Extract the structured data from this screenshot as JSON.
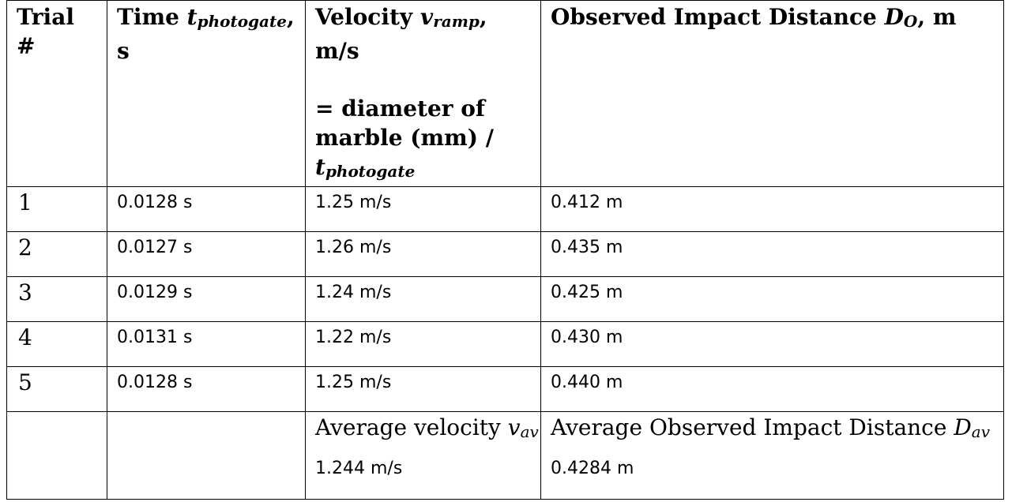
{
  "table": {
    "headers": {
      "trial": "Trial #",
      "time": {
        "prefix": "Time ",
        "var": "t",
        "sub": "photogate",
        "suffix": ", s"
      },
      "velocity": {
        "prefix": "Velocity ",
        "var": "v",
        "sub": "ramp",
        "suffix": ", m/s",
        "formula_line1": "= diameter of",
        "formula_line2": "marble (mm) /",
        "formula_var": "t",
        "formula_sub": "photogate"
      },
      "distance": {
        "prefix": "Observed Impact Distance ",
        "var": "D",
        "sub": "O",
        "suffix": ", m"
      }
    },
    "rows": [
      {
        "trial": "1",
        "time": "0.0128 s",
        "velocity": "1.25 m/s",
        "distance": "0.412 m"
      },
      {
        "trial": "2",
        "time": "0.0127 s",
        "velocity": "1.26 m/s",
        "distance": "0.435 m"
      },
      {
        "trial": "3",
        "time": "0.0129 s",
        "velocity": "1.24 m/s",
        "distance": "0.425 m"
      },
      {
        "trial": "4",
        "time": "0.0131 s",
        "velocity": "1.22 m/s",
        "distance": "0.430 m"
      },
      {
        "trial": "5",
        "time": "0.0128 s",
        "velocity": "1.25 m/s",
        "distance": "0.440 m"
      }
    ],
    "averages": {
      "velocity_label": {
        "prefix": "Average velocity ",
        "var": "v",
        "sub": "av"
      },
      "velocity_value": "1.244 m/s",
      "distance_label": {
        "prefix": "Average Observed Impact Distance ",
        "var": "D",
        "sub": "av"
      },
      "distance_value": "0.4284 m"
    }
  }
}
